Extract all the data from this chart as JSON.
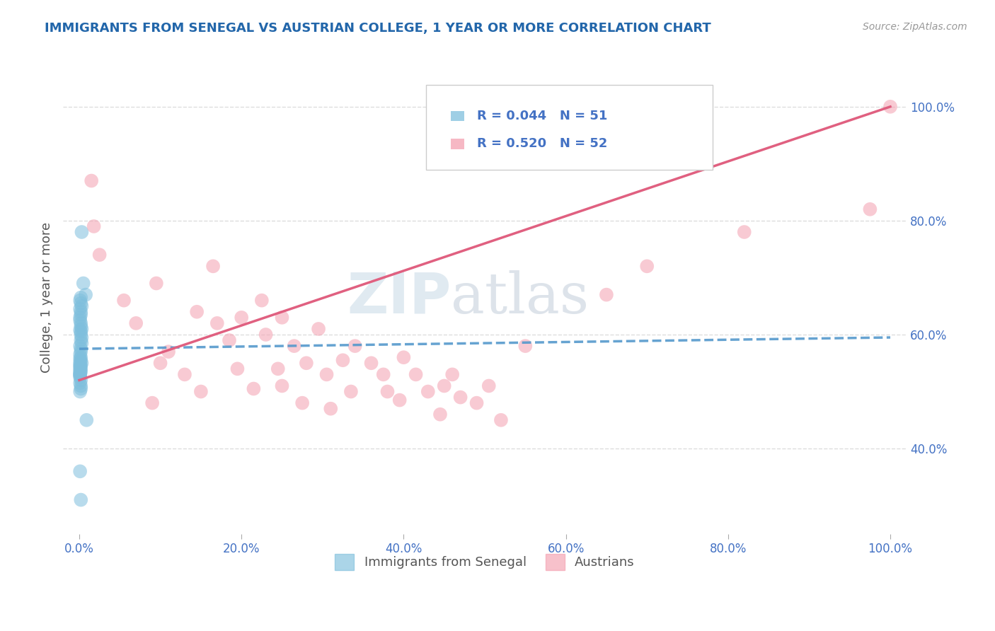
{
  "title": "IMMIGRANTS FROM SENEGAL VS AUSTRIAN COLLEGE, 1 YEAR OR MORE CORRELATION CHART",
  "source": "Source: ZipAtlas.com",
  "xlabel": "",
  "ylabel": "College, 1 year or more",
  "legend_labels": [
    "Immigrants from Senegal",
    "Austrians"
  ],
  "r_blue": 0.044,
  "n_blue": 51,
  "r_pink": 0.52,
  "n_pink": 52,
  "blue_color": "#7fbfdd",
  "pink_color": "#f4a0b0",
  "blue_line_color": "#5599cc",
  "pink_line_color": "#e06080",
  "watermark_zip": "ZIP",
  "watermark_atlas": "atlas",
  "title_color": "#2266aa",
  "axis_label_color": "#555555",
  "tick_color": "#4472c4",
  "legend_r_color": "#4472c4",
  "legend_n_color": "#4472c4",
  "blue_scatter_x": [
    0.3,
    0.5,
    0.8,
    0.2,
    0.1,
    0.2,
    0.3,
    0.1,
    0.2,
    0.2,
    0.1,
    0.1,
    0.2,
    0.2,
    0.3,
    0.1,
    0.2,
    0.2,
    0.3,
    0.2,
    0.3,
    0.1,
    0.2,
    0.2,
    0.1,
    0.2,
    0.2,
    0.3,
    0.1,
    0.2,
    0.2,
    0.1,
    0.1,
    0.2,
    0.1,
    0.2,
    0.2,
    0.1,
    0.1,
    0.1,
    0.1,
    0.1,
    0.1,
    0.1,
    0.1,
    0.9,
    0.2,
    0.1,
    0.1,
    0.1,
    0.2
  ],
  "blue_scatter_y": [
    78.0,
    69.0,
    67.0,
    66.5,
    66.0,
    65.5,
    65.0,
    64.5,
    64.0,
    63.5,
    63.0,
    62.5,
    62.0,
    61.5,
    61.0,
    60.8,
    60.5,
    60.0,
    59.5,
    59.0,
    58.5,
    58.0,
    57.5,
    57.0,
    56.5,
    56.0,
    55.5,
    55.0,
    54.5,
    54.0,
    53.5,
    53.0,
    52.5,
    52.0,
    51.5,
    51.0,
    50.5,
    50.0,
    55.8,
    55.2,
    54.8,
    54.2,
    53.8,
    53.2,
    52.8,
    45.0,
    54.5,
    53.5,
    53.0,
    36.0,
    31.0
  ],
  "pink_scatter_x": [
    1.5,
    1.8,
    2.5,
    5.5,
    7.0,
    9.5,
    11.0,
    13.0,
    14.5,
    16.5,
    17.0,
    18.5,
    19.5,
    20.0,
    21.5,
    22.5,
    23.0,
    24.5,
    25.0,
    26.5,
    27.5,
    28.0,
    29.5,
    30.5,
    31.0,
    32.5,
    33.5,
    34.0,
    36.0,
    37.5,
    38.0,
    39.5,
    40.0,
    41.5,
    43.0,
    44.5,
    46.0,
    47.0,
    49.0,
    50.5,
    52.0,
    45.0,
    9.0,
    10.0,
    15.0,
    25.0,
    55.0,
    65.0,
    70.0,
    82.0,
    97.5,
    100.0
  ],
  "pink_scatter_y": [
    87.0,
    79.0,
    74.0,
    66.0,
    62.0,
    69.0,
    57.0,
    53.0,
    64.0,
    72.0,
    62.0,
    59.0,
    54.0,
    63.0,
    50.5,
    66.0,
    60.0,
    54.0,
    51.0,
    58.0,
    48.0,
    55.0,
    61.0,
    53.0,
    47.0,
    55.5,
    50.0,
    58.0,
    55.0,
    53.0,
    50.0,
    48.5,
    56.0,
    53.0,
    50.0,
    46.0,
    53.0,
    49.0,
    48.0,
    51.0,
    45.0,
    51.0,
    48.0,
    55.0,
    50.0,
    63.0,
    58.0,
    67.0,
    72.0,
    78.0,
    82.0,
    100.0
  ],
  "blue_trend_start": 57.5,
  "blue_trend_end": 59.5,
  "pink_trend_start": 52.0,
  "pink_trend_end": 100.0,
  "xlim": [
    -2,
    102
  ],
  "ylim": [
    25,
    108
  ],
  "xticks": [
    0,
    20,
    40,
    60,
    80,
    100
  ],
  "xtick_labels": [
    "0.0%",
    "20.0%",
    "40.0%",
    "60.0%",
    "80.0%",
    "100.0%"
  ],
  "right_ytick_vals": [
    40,
    60,
    80,
    100
  ],
  "right_ytick_labels": [
    "40.0%",
    "60.0%",
    "80.0%",
    "100.0%"
  ],
  "grid_color": "#dddddd",
  "bg_color": "#ffffff"
}
